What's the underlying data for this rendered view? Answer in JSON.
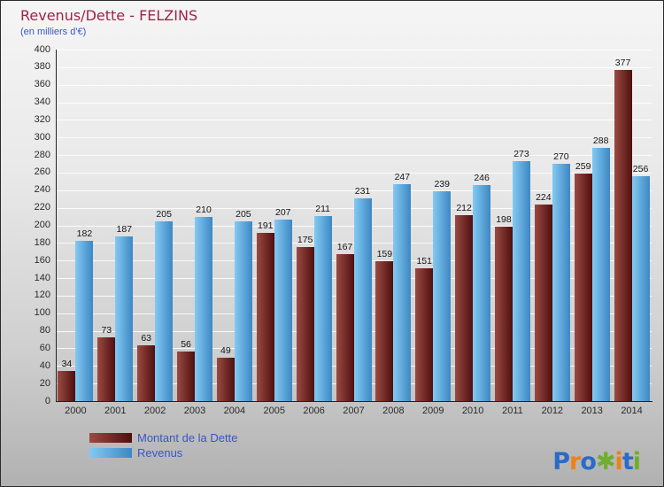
{
  "title": "Revenus/Dette - FELZINS",
  "subtitle": "(en milliers d'€)",
  "chart_data": {
    "type": "bar",
    "categories": [
      "2000",
      "2001",
      "2002",
      "2003",
      "2004",
      "2005",
      "2006",
      "2007",
      "2008",
      "2009",
      "2010",
      "2011",
      "2012",
      "2013",
      "2014"
    ],
    "series": [
      {
        "name": "Montant de la Dette",
        "color_start": "#9a4a42",
        "color_end": "#4f0f0f",
        "values": [
          34,
          73,
          63,
          56,
          49,
          191,
          175,
          167,
          159,
          151,
          212,
          198,
          224,
          259,
          377
        ]
      },
      {
        "name": "Revenus",
        "color_start": "#83c9f2",
        "color_end": "#3d88c4",
        "values": [
          182,
          187,
          205,
          210,
          205,
          207,
          211,
          231,
          247,
          239,
          246,
          273,
          270,
          288,
          256
        ]
      }
    ],
    "ylim": [
      0,
      400
    ],
    "yticks": [
      0,
      20,
      40,
      60,
      80,
      100,
      120,
      140,
      160,
      180,
      200,
      220,
      240,
      260,
      280,
      300,
      320,
      340,
      360,
      380,
      400
    ],
    "grid": true,
    "legend_position": "bottom-left",
    "xlabel": "",
    "ylabel": ""
  },
  "legend": {
    "items": [
      {
        "label": "Montant de la Dette"
      },
      {
        "label": "Revenus"
      }
    ]
  },
  "logo": {
    "text": "Proxiti",
    "letters": [
      {
        "char": "P",
        "color": "#2a6bc8"
      },
      {
        "char": "r",
        "color": "#f08019"
      },
      {
        "char": "o",
        "color": "#2a6bc8"
      },
      {
        "char": "✱",
        "color": "#6fae2e"
      },
      {
        "char": "i",
        "color": "#f08019"
      },
      {
        "char": "t",
        "color": "#2a6bc8"
      },
      {
        "char": "i",
        "color": "#6fae2e"
      }
    ]
  },
  "colors": {
    "title": "#a02346",
    "subtitle": "#3a55c8",
    "legend_text": "#3a55c8",
    "grid": "#ffffff",
    "axis": "#222222",
    "value_label": "#141414",
    "background_top": "#f5f5f5",
    "background_bottom": "#b1b1b1"
  }
}
